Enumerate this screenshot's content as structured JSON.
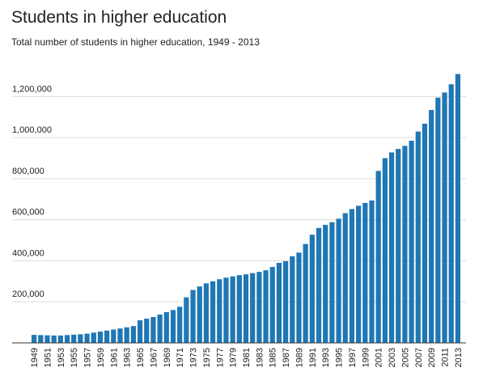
{
  "chart_data": {
    "type": "bar",
    "title": "Students in higher education",
    "subtitle": "Total number of students in higher education, 1949 - 2013",
    "categories": [
      "1949",
      null,
      "1951",
      null,
      "1953",
      null,
      "1955",
      null,
      "1957",
      null,
      "1959",
      null,
      "1961",
      null,
      "1963",
      null,
      "1965",
      null,
      "1967",
      null,
      "1969",
      null,
      "1971",
      null,
      "1973",
      null,
      "1975",
      null,
      "1977",
      null,
      "1979",
      null,
      "1981",
      null,
      "1983",
      null,
      "1985",
      null,
      "1987",
      null,
      "1989",
      null,
      "1991",
      null,
      "1993",
      null,
      "1995",
      null,
      "1997",
      null,
      "1999",
      null,
      "2001",
      null,
      "2003",
      null,
      "2005",
      null,
      "2007",
      null,
      "2009",
      null,
      "2011",
      null,
      "2013"
    ],
    "values": [
      39000,
      38000,
      37000,
      36000,
      36000,
      38000,
      40000,
      42000,
      45000,
      50000,
      55000,
      60000,
      65000,
      70000,
      76000,
      82000,
      110000,
      118000,
      126000,
      138000,
      150000,
      160000,
      176000,
      222000,
      258000,
      275000,
      290000,
      300000,
      310000,
      318000,
      324000,
      330000,
      334000,
      340000,
      346000,
      354000,
      370000,
      390000,
      398000,
      422000,
      440000,
      482000,
      527000,
      560000,
      575000,
      588000,
      605000,
      632000,
      652000,
      668000,
      682000,
      694000,
      838000,
      900000,
      928000,
      945000,
      960000,
      985000,
      1030000,
      1068000,
      1135000,
      1195000,
      1220000,
      1260000,
      1310000
    ],
    "color": "#1f77b4",
    "ylim": [
      0,
      1320000
    ],
    "yticks": [
      {
        "value": 200000,
        "label": "200,000"
      },
      {
        "value": 400000,
        "label": "400,000"
      },
      {
        "value": 600000,
        "label": "600,000"
      },
      {
        "value": 800000,
        "label": "800,000"
      },
      {
        "value": 1000000,
        "label": "1,000,000"
      },
      {
        "value": 1200000,
        "label": "1,200,000"
      }
    ],
    "grid": true
  }
}
